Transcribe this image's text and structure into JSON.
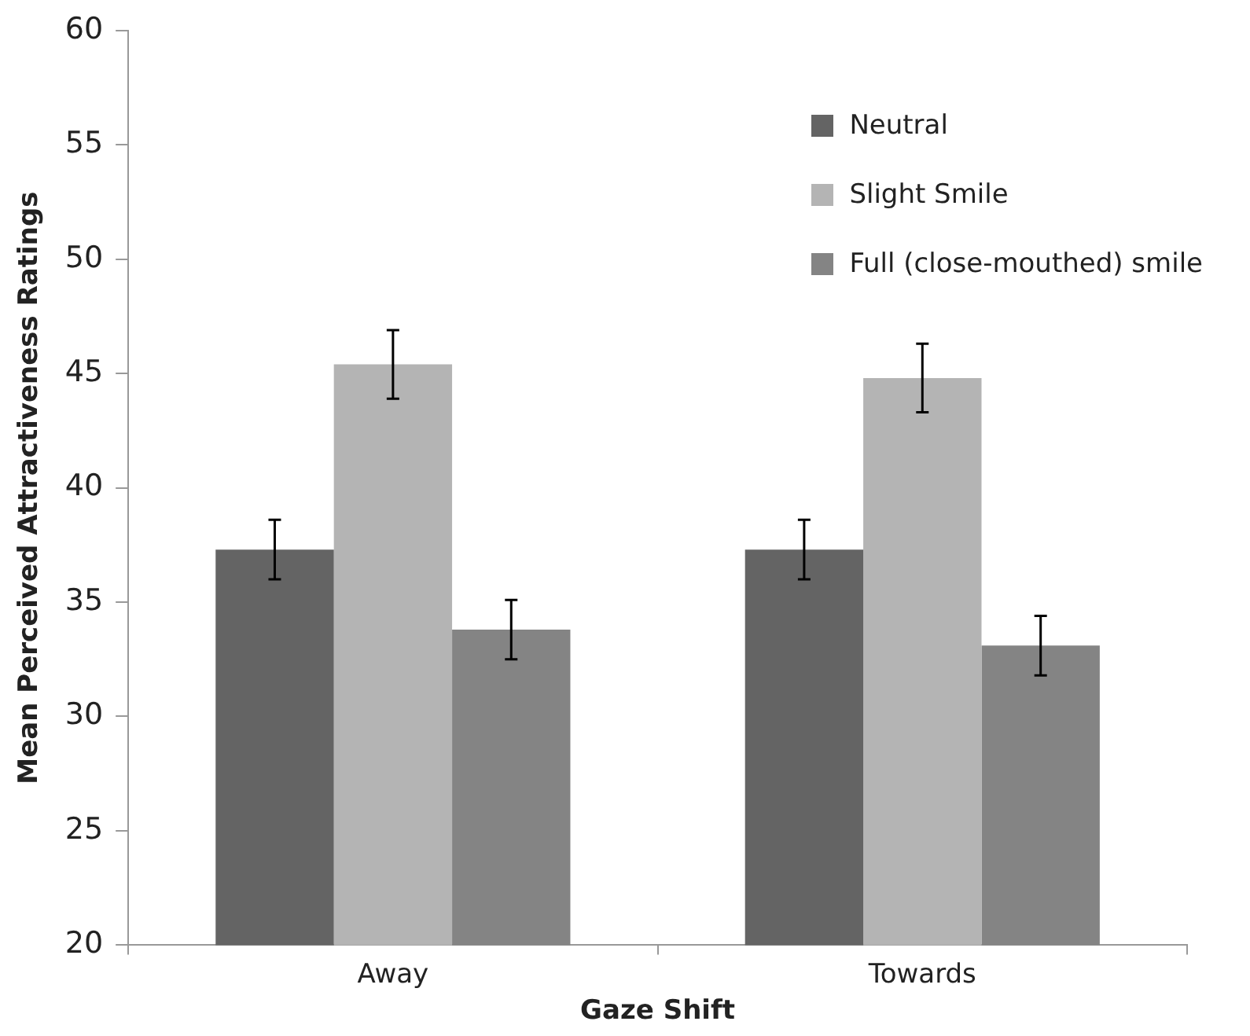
{
  "chart_data": {
    "type": "bar",
    "xlabel": "Gaze Shift",
    "ylabel": "Mean Perceived Attractiveness Ratings",
    "categories": [
      "Away",
      "Towards"
    ],
    "series": [
      {
        "name": "Neutral",
        "color": "#646464",
        "values": [
          37.3,
          37.3
        ],
        "errors": [
          1.3,
          1.3
        ]
      },
      {
        "name": "Slight Smile",
        "color": "#b4b4b4",
        "values": [
          45.4,
          44.8
        ],
        "errors": [
          1.5,
          1.5
        ]
      },
      {
        "name": "Full (close-mouthed) smile",
        "color": "#848484",
        "values": [
          33.8,
          33.1
        ],
        "errors": [
          1.3,
          1.3
        ]
      }
    ],
    "ylim": [
      20,
      60
    ],
    "yticks": [
      20,
      25,
      30,
      35,
      40,
      45,
      50,
      55,
      60
    ],
    "grid": false,
    "legend": "top right"
  }
}
